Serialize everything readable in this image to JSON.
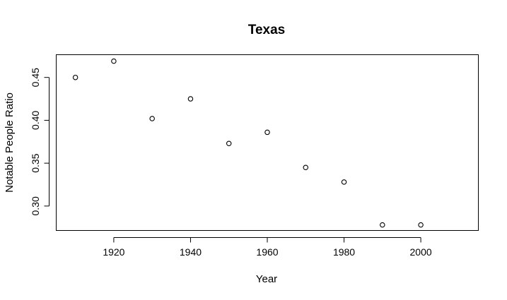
{
  "chart_data": {
    "type": "scatter",
    "title": "Texas",
    "xlabel": "Year",
    "ylabel": "Notable People Ratio",
    "xlim": [
      1905,
      2015
    ],
    "ylim": [
      0.2715,
      0.4765
    ],
    "xticks": [
      1920,
      1940,
      1960,
      1980,
      2000
    ],
    "yticks": [
      0.3,
      0.35,
      0.4,
      0.45
    ],
    "xtick_labels": [
      "1920",
      "1940",
      "1960",
      "1980",
      "2000"
    ],
    "ytick_labels": [
      "0.30",
      "0.35",
      "0.40",
      "0.45"
    ],
    "grid": false,
    "marker": "open-circle",
    "color": "#000000",
    "points": [
      {
        "x": 1910,
        "y": 0.45
      },
      {
        "x": 1920,
        "y": 0.469
      },
      {
        "x": 1930,
        "y": 0.402
      },
      {
        "x": 1940,
        "y": 0.425
      },
      {
        "x": 1950,
        "y": 0.373
      },
      {
        "x": 1960,
        "y": 0.386
      },
      {
        "x": 1970,
        "y": 0.345
      },
      {
        "x": 1980,
        "y": 0.328
      },
      {
        "x": 1990,
        "y": 0.278
      },
      {
        "x": 2000,
        "y": 0.278
      }
    ]
  }
}
